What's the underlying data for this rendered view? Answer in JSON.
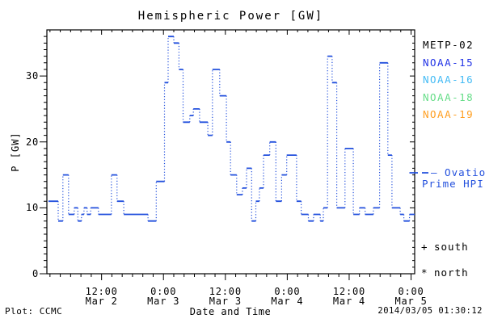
{
  "page": {
    "background": "#ffffff",
    "text_color": "#000000"
  },
  "chart_data": {
    "type": "line",
    "subtype": "step",
    "title": "Hemispheric Power [GW]",
    "xlabel": "Date and Time",
    "ylabel": "P [GW]",
    "ylim": [
      0,
      37
    ],
    "y_major_ticks": [
      0,
      10,
      20,
      30
    ],
    "y_minor_step": 1,
    "grid": false,
    "x_range_hours_from_mar2_00": [
      1.4,
      72.7
    ],
    "x_minor_step_hours": 2,
    "x_ticks": [
      {
        "hour": 12,
        "time": "12:00",
        "date": "Mar 2"
      },
      {
        "hour": 24,
        "time": "0:00",
        "date": "Mar 3"
      },
      {
        "hour": 36,
        "time": "12:00",
        "date": "Mar 3"
      },
      {
        "hour": 48,
        "time": "0:00",
        "date": "Mar 4"
      },
      {
        "hour": 60,
        "time": "12:00",
        "date": "Mar 4"
      },
      {
        "hour": 72,
        "time": "0:00",
        "date": "Mar 5"
      }
    ],
    "series": [
      {
        "name": "Ovation Prime HPI",
        "color": "#2350dd",
        "line_style": "solid horizontal steps with dotted vertical connectors",
        "segments_start_end_hour_value_gw": [
          [
            1.7,
            3.6,
            11
          ],
          [
            3.6,
            4.5,
            8
          ],
          [
            4.5,
            5.6,
            15
          ],
          [
            5.6,
            6.7,
            9
          ],
          [
            6.7,
            7.4,
            10
          ],
          [
            7.4,
            8.1,
            8
          ],
          [
            8.1,
            8.6,
            9
          ],
          [
            8.6,
            9.2,
            10
          ],
          [
            9.2,
            9.9,
            9
          ],
          [
            9.9,
            11.4,
            10
          ],
          [
            11.4,
            13.9,
            9
          ],
          [
            13.9,
            15.0,
            15
          ],
          [
            15.0,
            16.3,
            11
          ],
          [
            16.3,
            21.0,
            9
          ],
          [
            21.0,
            22.6,
            8
          ],
          [
            22.6,
            24.2,
            14
          ],
          [
            24.2,
            24.9,
            29
          ],
          [
            24.9,
            26.0,
            36
          ],
          [
            26.0,
            27.0,
            35
          ],
          [
            27.0,
            27.8,
            31
          ],
          [
            27.8,
            29.1,
            23
          ],
          [
            29.1,
            29.8,
            24
          ],
          [
            29.8,
            31.0,
            25
          ],
          [
            31.0,
            32.6,
            23
          ],
          [
            32.6,
            33.5,
            21
          ],
          [
            33.5,
            34.9,
            31
          ],
          [
            34.9,
            36.2,
            27
          ],
          [
            36.2,
            37.0,
            20
          ],
          [
            37.0,
            38.2,
            15
          ],
          [
            38.2,
            39.3,
            12
          ],
          [
            39.3,
            40.1,
            13
          ],
          [
            40.1,
            41.1,
            16
          ],
          [
            41.1,
            41.9,
            8
          ],
          [
            41.9,
            42.6,
            11
          ],
          [
            42.6,
            43.4,
            13
          ],
          [
            43.4,
            44.6,
            18
          ],
          [
            44.6,
            45.8,
            20
          ],
          [
            45.8,
            46.9,
            11
          ],
          [
            46.9,
            47.9,
            15
          ],
          [
            47.9,
            49.8,
            18
          ],
          [
            49.8,
            50.7,
            11
          ],
          [
            50.7,
            52.1,
            9
          ],
          [
            52.1,
            53.1,
            8
          ],
          [
            53.1,
            54.4,
            9
          ],
          [
            54.4,
            55.0,
            8
          ],
          [
            55.0,
            55.8,
            10
          ],
          [
            55.8,
            56.7,
            33
          ],
          [
            56.7,
            57.6,
            29
          ],
          [
            57.6,
            59.2,
            10
          ],
          [
            59.2,
            60.8,
            19
          ],
          [
            60.8,
            62.0,
            9
          ],
          [
            62.0,
            63.1,
            10
          ],
          [
            63.1,
            64.7,
            9
          ],
          [
            64.7,
            65.9,
            10
          ],
          [
            65.9,
            67.5,
            32
          ],
          [
            67.5,
            68.3,
            18
          ],
          [
            68.3,
            69.9,
            10
          ],
          [
            69.9,
            70.6,
            9
          ],
          [
            70.6,
            71.7,
            8
          ],
          [
            71.7,
            72.7,
            9
          ]
        ]
      }
    ],
    "legend_position": "right"
  },
  "legend": {
    "satellites": [
      {
        "label": "METP-02",
        "color": "#000000"
      },
      {
        "label": "NOAA-15",
        "color": "#2233e6"
      },
      {
        "label": "NOAA-16",
        "color": "#44bbf5"
      },
      {
        "label": "NOAA-18",
        "color": "#66dd88"
      },
      {
        "label": "NOAA-19",
        "color": "#ff9f22"
      }
    ],
    "ovation": {
      "sample": "—",
      "line1": "— Ovation",
      "line2": "Prime HPI",
      "color": "#2350dd"
    },
    "markers": [
      {
        "symbol": "+",
        "label": "south"
      },
      {
        "symbol": "*",
        "label": "north"
      }
    ]
  },
  "footer": {
    "credit": "Plot: CCMC",
    "timestamp": "2014/03/05 01:30:12"
  }
}
